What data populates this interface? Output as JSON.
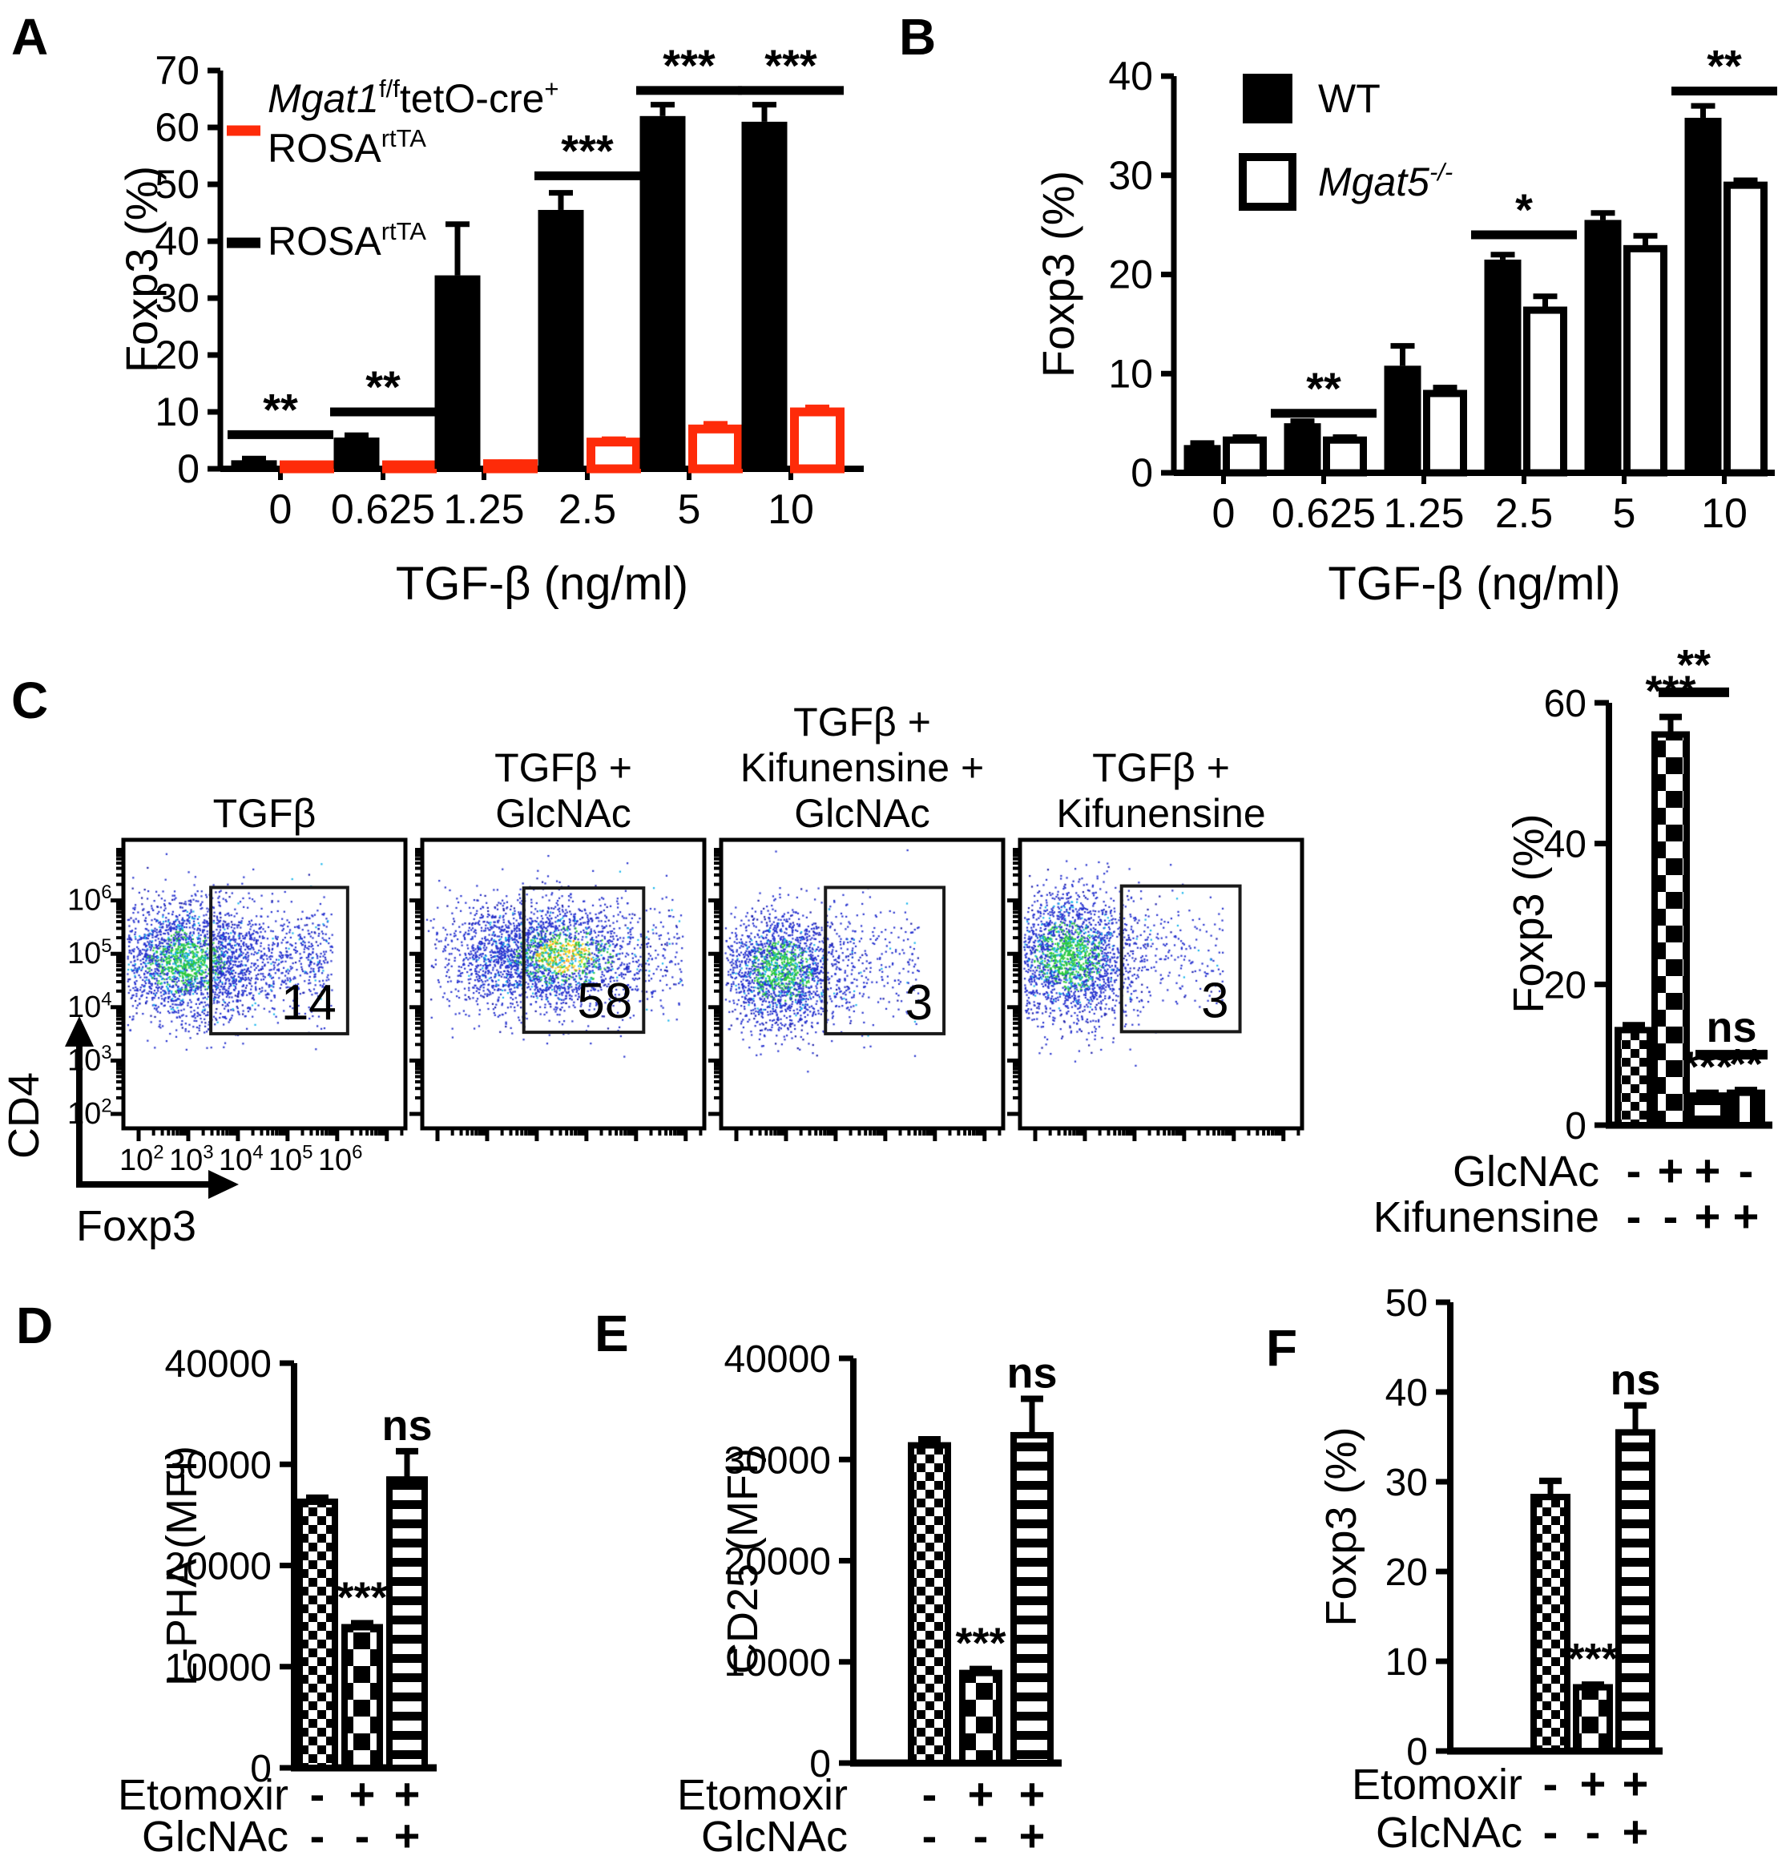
{
  "panel_labels": {
    "A": "A",
    "B": "B",
    "C": "C",
    "D": "D",
    "E": "E",
    "F": "F"
  },
  "colors": {
    "red": "#fe2b09",
    "black": "#000000",
    "dot_blue": "#2733cf",
    "dot_deep": "#1a1ca8",
    "dot_cyan": "#17b5ec",
    "dot_green": "#2cc93c",
    "dot_yellow": "#f5e32a",
    "dot_orange": "#ff9417"
  },
  "chart_data": [
    {
      "id": "panel-A",
      "type": "bar",
      "panel": "A",
      "xlabel": "TGF-β (ng/ml)",
      "ylabel": "Foxp3 (%)",
      "ylim": [
        0,
        70
      ],
      "yticks": [
        0,
        10,
        20,
        30,
        40,
        50,
        60,
        70
      ],
      "categories": [
        "0",
        "0.625",
        "1.25",
        "2.5",
        "5",
        "10"
      ],
      "series": [
        {
          "name": "ROSArtTA",
          "style": "solid-black",
          "values": [
            1.5,
            5.5,
            34,
            45.5,
            62,
            61
          ],
          "errors": [
            0.3,
            0.4,
            9,
            3,
            2,
            3
          ]
        },
        {
          "name": "Mgat1 f/f tetO-cre+ ROSArtTA",
          "style": "open-red",
          "values": [
            0.7,
            0.7,
            0.9,
            4.7,
            7,
            10
          ],
          "errors": [
            0.15,
            0.15,
            0.25,
            0.5,
            0.9,
            0.8
          ]
        }
      ],
      "legend": [
        {
          "swatch": "red-line",
          "lines": [
            [
              {
                "t": "Mgat1",
                "italic": true
              },
              {
                "t": "f/f",
                "sup": true
              },
              {
                "t": "tetO-cre"
              },
              {
                "t": "+",
                "sup": true
              }
            ],
            [
              {
                "t": "ROSA"
              },
              {
                "t": "rtTA",
                "sup": true
              }
            ]
          ]
        },
        {
          "swatch": "black-line",
          "lines": [
            [
              {
                "t": "ROSA"
              },
              {
                "t": "rtTA",
                "sup": true
              }
            ]
          ]
        }
      ],
      "significance": [
        {
          "group": 0,
          "y": 6,
          "label": "**"
        },
        {
          "group": 1,
          "y": 10,
          "label": "**"
        },
        {
          "group": 3,
          "y": 51.5,
          "label": "***"
        },
        {
          "group": 4,
          "y": 66.5,
          "label": "***"
        },
        {
          "group": 5,
          "y": 66.5,
          "label": "***"
        }
      ]
    },
    {
      "id": "panel-B",
      "type": "bar",
      "panel": "B",
      "xlabel": "TGF-β (ng/ml)",
      "ylabel": "Foxp3 (%)",
      "ylim": [
        0,
        40
      ],
      "yticks": [
        0,
        10,
        20,
        30,
        40
      ],
      "categories": [
        "0",
        "0.625",
        "1.25",
        "2.5",
        "5",
        "10"
      ],
      "series": [
        {
          "name": "WT",
          "style": "solid-black",
          "values": [
            2.8,
            5.0,
            10.8,
            21.5,
            25.5,
            35.8
          ],
          "errors": [
            0.2,
            0.2,
            2.0,
            0.5,
            0.7,
            1.2
          ]
        },
        {
          "name": "Mgat5-/-",
          "style": "open-black",
          "values": [
            3.3,
            3.3,
            8.0,
            16.4,
            22.6,
            29.0
          ],
          "errors": [
            0.3,
            0.3,
            0.6,
            1.4,
            1.3,
            0.5
          ]
        }
      ],
      "legend": [
        {
          "swatch": "solid-box",
          "lines": [
            [
              {
                "t": "WT"
              }
            ]
          ]
        },
        {
          "swatch": "open-box",
          "lines": [
            [
              {
                "t": "Mgat5",
                "italic": true
              },
              {
                "t": "-/-",
                "sup": true,
                "italic": true
              }
            ]
          ]
        }
      ],
      "significance": [
        {
          "group": 1,
          "y": 6,
          "label": "**"
        },
        {
          "group": 3,
          "y": 24,
          "label": "*"
        },
        {
          "group": 5,
          "y": 38.5,
          "label": "**"
        }
      ]
    },
    {
      "id": "panel-C-flow",
      "type": "scatter",
      "panel": "C",
      "x_axis_label": "Foxp3",
      "y_axis_label": "CD4",
      "decade_exponents": [
        2,
        3,
        4,
        5,
        6
      ],
      "plots": [
        {
          "title_lines": [
            "TGFβ"
          ],
          "gate_label": "14",
          "cloud": {
            "cx": 0.22,
            "cy": 0.42,
            "sx": 0.13,
            "sy": 0.105,
            "n": 2400,
            "hot": "green",
            "hot_dx": 0
          },
          "tail": {
            "n": 620,
            "x0": 0.33,
            "x1": 0.74,
            "cy": 0.42,
            "sy": 0.1
          }
        },
        {
          "title_lines": [
            "TGFβ +",
            "GlcNAc"
          ],
          "gate_label": "58",
          "cloud": {
            "cx": 0.4,
            "cy": 0.4,
            "sx": 0.165,
            "sy": 0.095,
            "n": 2600,
            "hot": "orange",
            "hot_dx": 0.1
          },
          "tail": {
            "n": 260,
            "x0": 0.58,
            "x1": 0.92,
            "cy": 0.4,
            "sy": 0.1
          }
        },
        {
          "title_lines": [
            "TGFβ +",
            "Kifunensine +",
            "GlcNAc"
          ],
          "gate_label": "3",
          "cloud": {
            "cx": 0.21,
            "cy": 0.45,
            "sx": 0.105,
            "sy": 0.1,
            "n": 2000,
            "hot": "green",
            "hot_dx": 0
          },
          "tail": {
            "n": 230,
            "x0": 0.37,
            "x1": 0.7,
            "cy": 0.43,
            "sy": 0.11
          }
        },
        {
          "title_lines": [
            "TGFβ +",
            "Kifunensine"
          ],
          "gate_label": "3",
          "cloud": {
            "cx": 0.17,
            "cy": 0.4,
            "sx": 0.115,
            "sy": 0.115,
            "n": 2300,
            "hot": "green",
            "hot_dx": 0
          },
          "tail": {
            "n": 180,
            "x0": 0.37,
            "x1": 0.72,
            "cy": 0.4,
            "sy": 0.1
          }
        }
      ]
    },
    {
      "id": "panel-C-bar",
      "type": "bar",
      "panel": "C",
      "ylabel": "Foxp3 (%)",
      "ylim": [
        0,
        60
      ],
      "yticks": [
        0,
        20,
        40,
        60
      ],
      "bars": [
        {
          "pattern": "fine-checker",
          "value": 13.5,
          "error": 0.7,
          "star": ""
        },
        {
          "pattern": "coarse-checker",
          "value": 55.5,
          "error": 2.5,
          "star": "***"
        },
        {
          "pattern": "h-stripes",
          "value": 4.2,
          "error": 0.4,
          "star": "***"
        },
        {
          "pattern": "v-stripes",
          "value": 4.6,
          "error": 0.4,
          "star": "**"
        }
      ],
      "brackets": [
        {
          "from": 1,
          "to": 2,
          "y": 61.5,
          "label": "**"
        },
        {
          "from": 2,
          "to": 3,
          "y": 10,
          "label": "ns"
        }
      ],
      "condition_rows": [
        {
          "label": "GlcNAc",
          "values": [
            "-",
            "+",
            "+",
            "-"
          ]
        },
        {
          "label": "Kifunensine",
          "values": [
            "-",
            "-",
            "+",
            "+"
          ]
        }
      ]
    },
    {
      "id": "panel-D",
      "type": "bar",
      "panel": "D",
      "ylabel": "L-PHA (MFI)",
      "ylim": [
        0,
        40000
      ],
      "yticks": [
        0,
        10000,
        20000,
        30000,
        40000
      ],
      "bars": [
        {
          "pattern": "fine-checker",
          "value": 26300,
          "error": 400,
          "star": ""
        },
        {
          "pattern": "coarse-checker",
          "value": 13900,
          "error": 400,
          "star": "***"
        },
        {
          "pattern": "h-stripes",
          "value": 28500,
          "error": 2800,
          "star": "ns"
        }
      ],
      "brackets": [],
      "condition_rows": [
        {
          "label": "Etomoxir",
          "values": [
            "-",
            "+",
            "+"
          ]
        },
        {
          "label": "GlcNAc",
          "values": [
            "-",
            "-",
            "+"
          ]
        }
      ]
    },
    {
      "id": "panel-E",
      "type": "bar",
      "panel": "E",
      "ylabel": "CD25 (MFI)",
      "ylim": [
        0,
        40000
      ],
      "yticks": [
        0,
        10000,
        20000,
        30000,
        40000
      ],
      "bars": [
        {
          "pattern": "fine-checker",
          "value": 31400,
          "error": 600,
          "star": ""
        },
        {
          "pattern": "coarse-checker",
          "value": 8900,
          "error": 400,
          "star": "***"
        },
        {
          "pattern": "h-stripes",
          "value": 32400,
          "error": 3600,
          "star": "ns"
        }
      ],
      "brackets": [],
      "condition_rows": [
        {
          "label": "Etomoxir",
          "values": [
            "-",
            "+",
            "+"
          ]
        },
        {
          "label": "GlcNAc",
          "values": [
            "-",
            "-",
            "+"
          ]
        }
      ]
    },
    {
      "id": "panel-F",
      "type": "bar",
      "panel": "F",
      "ylabel": "Foxp3 (%)",
      "ylim": [
        0,
        50
      ],
      "yticks": [
        0,
        10,
        20,
        30,
        40,
        50
      ],
      "bars": [
        {
          "pattern": "fine-checker",
          "value": 28.3,
          "error": 1.8,
          "star": ""
        },
        {
          "pattern": "coarse-checker",
          "value": 7.1,
          "error": 0.3,
          "star": "***"
        },
        {
          "pattern": "h-stripes",
          "value": 35.5,
          "error": 3.0,
          "star": "ns"
        }
      ],
      "brackets": [],
      "condition_rows": [
        {
          "label": "Etomoxir",
          "values": [
            "-",
            "+",
            "+"
          ]
        },
        {
          "label": "GlcNAc",
          "values": [
            "-",
            "-",
            "+"
          ]
        }
      ]
    }
  ]
}
